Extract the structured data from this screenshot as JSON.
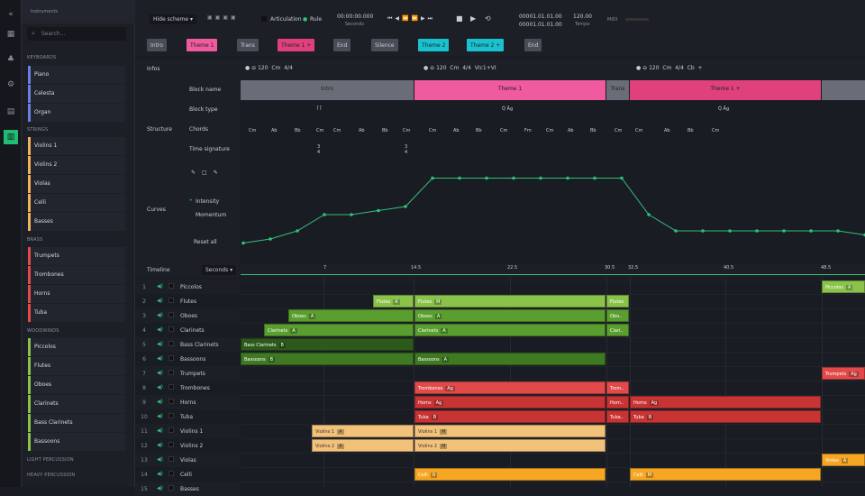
{
  "sidebar": {
    "header": "Instruments",
    "search_placeholder": "Search...",
    "categories": {
      "keyboards": "KEYBOARDS",
      "strings": "STRINGS",
      "brass": "BRASS",
      "woodwinds": "WOODWINDS",
      "light": "LIGHT PERCUSSION",
      "heavy": "HEAVY PERCUSSION"
    },
    "keyboards": [
      "Piano",
      "Celesta",
      "Organ"
    ],
    "strings": [
      "Violins 1",
      "Violins 2",
      "Violas",
      "Celli",
      "Basses"
    ],
    "brass": [
      "Trumpets",
      "Trombones",
      "Horns",
      "Tuba"
    ],
    "woodwinds": [
      "Piccolos",
      "Flutes",
      "Oboes",
      "Clarinets",
      "Bass Clarinets",
      "Bassoons"
    ]
  },
  "topbar": {
    "hide_scheme": "Hide scheme",
    "articulation": "Articulation",
    "rule": "Rule",
    "time": "00:00:00.000",
    "time_unit": "Seconds",
    "pos1": "00001.01.01.00",
    "pos2": "00001.01.01.00",
    "tempo": "120.00",
    "tempo_label": "Tempo",
    "midi": "MIDI"
  },
  "blocks": [
    "Intro",
    "Theme 1",
    "Trans",
    "Theme 1 +",
    "End",
    "Silence",
    "Theme 2",
    "Theme 2 +",
    "End"
  ],
  "structure": {
    "infos": "Infos",
    "structure": "Structure",
    "block_name": "Block name",
    "block_type": "Block type",
    "chords": "Chords",
    "time_signature": "Time signature",
    "curves": "Curves",
    "intensity": "Intensity",
    "momentum": "Momentum",
    "reset": "Reset all",
    "timeline": "Timeline",
    "seconds": "Seconds"
  },
  "sections": [
    "Intro",
    "Theme 1",
    "Trans",
    "Theme 1 +"
  ],
  "ctrl": {
    "tempo": "120",
    "key": "Cm",
    "sig": "4/4",
    "vi": "VIc1+VI",
    "key2": "Cm",
    "key3": "Cb"
  },
  "chords": [
    "Cm",
    "Ab",
    "Bb",
    "Cm",
    "Cm",
    "Ab",
    "Bb",
    "Cm",
    "Cm",
    "Ab",
    "Bb",
    "Cm",
    "Fm",
    "Cm",
    "Ab",
    "Bb",
    "Cm",
    "Cm",
    "Ab",
    "Bb",
    "Cm"
  ],
  "tsig": [
    "3",
    "4",
    "3",
    "4"
  ],
  "ruler": [
    "7",
    "14.5",
    "22.5",
    "30.5",
    "32.5",
    "40.5",
    "48.5"
  ],
  "tracks": [
    "Piccolos",
    "Flutes",
    "Oboes",
    "Clarinets",
    "Bass Clarinets",
    "Bassoons",
    "Trumpets",
    "Trombones",
    "Horns",
    "Tuba",
    "Violins 1",
    "Violins 2",
    "Violas",
    "Celli",
    "Basses"
  ],
  "tracknums": [
    "1",
    "2",
    "3",
    "4",
    "5",
    "6",
    "7",
    "8",
    "9",
    "10",
    "11",
    "12",
    "13",
    "14",
    "15"
  ],
  "clipnames": {
    "flutes": "Flutes",
    "oboes": "Oboes",
    "clar": "Clarinets",
    "bclar": "Bass Clarinets",
    "bassoons": "Bassoons",
    "trumpets": "Trumpets",
    "trombones": "Trombones",
    "horns": "Horns",
    "tuba": "Tuba",
    "v1": "Violins 1",
    "v2": "Violins 2",
    "violas": "Violas",
    "celli": "Celli",
    "picc": "Piccolos",
    "flutes_t": "Flutes",
    "oboes_t": "Obo..",
    "clar_t": "Clari..",
    "tromb_t": "Trom..",
    "horns_t": "Horn..",
    "tuba_t": "Tuba.."
  },
  "clipletters": {
    "a": "A",
    "m": "M",
    "b": "B",
    "ag": "Ag"
  },
  "curve": {
    "intensity": [
      0.15,
      0.2,
      0.3,
      0.5,
      0.5,
      0.55,
      0.6,
      0.95,
      0.95,
      0.95,
      0.95,
      0.95,
      0.95,
      0.95,
      0.95,
      0.5,
      0.3,
      0.3,
      0.3,
      0.3,
      0.3,
      0.3,
      0.3,
      0.25
    ]
  }
}
